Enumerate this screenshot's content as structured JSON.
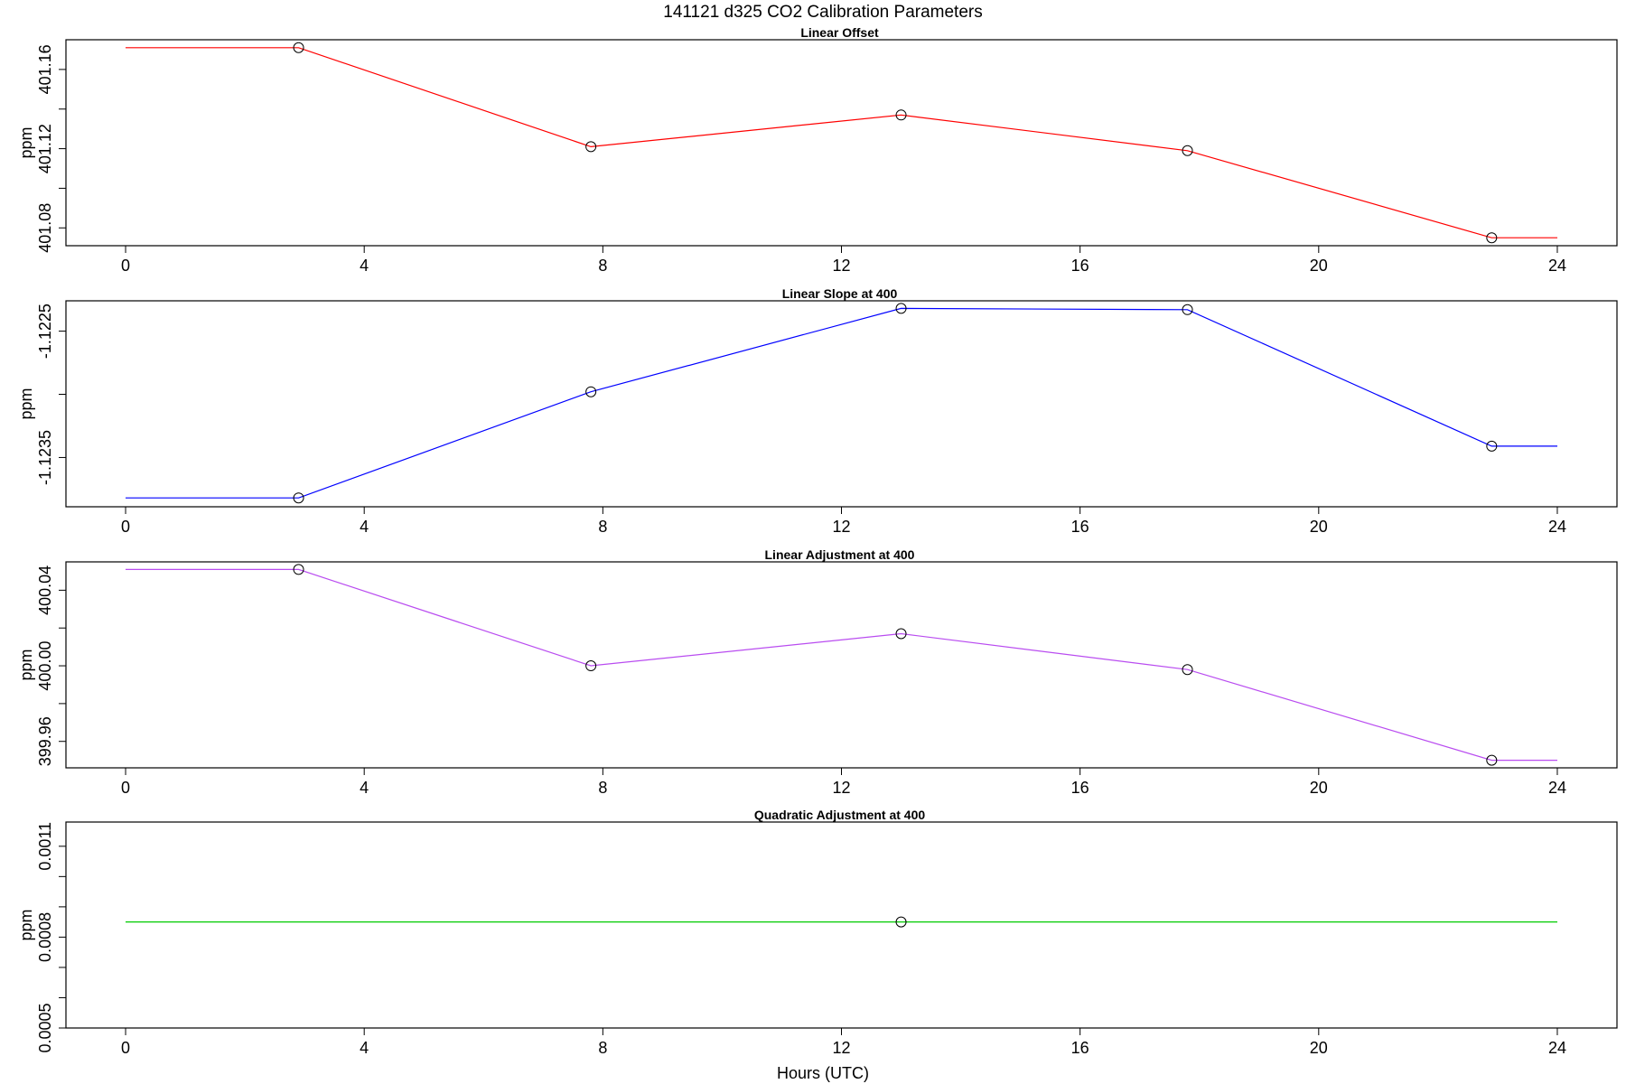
{
  "title": "141121   d325   CO2 Calibration Parameters",
  "xlabel": "Hours (UTC)",
  "chart_data": [
    {
      "type": "line",
      "title": "Linear Offset",
      "ylabel": "ppm",
      "color": "#ff0000",
      "xlim": [
        -1,
        25
      ],
      "ylim": [
        401.071,
        401.175
      ],
      "xticks": [
        0,
        4,
        8,
        12,
        16,
        20,
        24
      ],
      "yticks": [
        401.08,
        401.1,
        401.12,
        401.14,
        401.16
      ],
      "ytick_labels": [
        "401.08",
        "",
        "401.12",
        "",
        "401.16"
      ],
      "points": {
        "x": [
          2.9,
          7.8,
          13.0,
          17.8,
          22.9
        ],
        "y": [
          401.171,
          401.121,
          401.137,
          401.119,
          401.075
        ]
      },
      "line": {
        "x": [
          0,
          2.9,
          7.8,
          13.0,
          17.8,
          22.9,
          24
        ],
        "y": [
          401.171,
          401.171,
          401.121,
          401.137,
          401.119,
          401.075,
          401.075
        ]
      }
    },
    {
      "type": "line",
      "title": "Linear Slope at 400",
      "ylabel": "ppm",
      "color": "#0000ff",
      "xlim": [
        -1,
        25
      ],
      "ylim": [
        -1.12389,
        -1.12226
      ],
      "xticks": [
        0,
        4,
        8,
        12,
        16,
        20,
        24
      ],
      "yticks": [
        -1.1225,
        -1.123,
        -1.1235
      ],
      "ytick_labels": [
        "-1.1225",
        "",
        "-1.1235"
      ],
      "points": {
        "x": [
          2.9,
          7.8,
          13.0,
          17.8,
          22.9
        ],
        "y": [
          -1.12382,
          -1.12298,
          -1.12232,
          -1.12233,
          -1.12341
        ]
      },
      "line": {
        "x": [
          0,
          2.9,
          7.8,
          13.0,
          17.8,
          22.9,
          24
        ],
        "y": [
          -1.12382,
          -1.12382,
          -1.12298,
          -1.12232,
          -1.12233,
          -1.12341,
          -1.12341
        ]
      }
    },
    {
      "type": "line",
      "title": "Linear Adjustment at 400",
      "ylabel": "ppm",
      "color": "#b94cf0",
      "xlim": [
        -1,
        25
      ],
      "ylim": [
        399.946,
        400.055
      ],
      "xticks": [
        0,
        4,
        8,
        12,
        16,
        20,
        24
      ],
      "yticks": [
        399.96,
        399.98,
        400.0,
        400.02,
        400.04
      ],
      "ytick_labels": [
        "399.96",
        "",
        "400.00",
        "",
        "400.04"
      ],
      "points": {
        "x": [
          2.9,
          7.8,
          13.0,
          17.8,
          22.9
        ],
        "y": [
          400.051,
          400.0,
          400.017,
          399.998,
          399.95
        ]
      },
      "line": {
        "x": [
          0,
          2.9,
          7.8,
          13.0,
          17.8,
          22.9,
          24
        ],
        "y": [
          400.051,
          400.051,
          400.0,
          400.017,
          399.998,
          399.95,
          399.95
        ]
      }
    },
    {
      "type": "line",
      "title": "Quadratic Adjustment at 400",
      "ylabel": "ppm",
      "color": "#00cc00",
      "xlim": [
        -1,
        25
      ],
      "ylim": [
        0.0005,
        0.00118
      ],
      "xticks": [
        0,
        4,
        8,
        12,
        16,
        20,
        24
      ],
      "yticks": [
        0.0005,
        0.0006,
        0.0007,
        0.0008,
        0.0009,
        0.001,
        0.0011
      ],
      "ytick_labels": [
        "0.0005",
        "",
        "",
        "0.0008",
        "",
        "",
        "0.0011"
      ],
      "points": {
        "x": [
          13.0
        ],
        "y": [
          0.00085
        ]
      },
      "line": {
        "x": [
          0,
          24
        ],
        "y": [
          0.00085,
          0.00085
        ]
      }
    }
  ]
}
